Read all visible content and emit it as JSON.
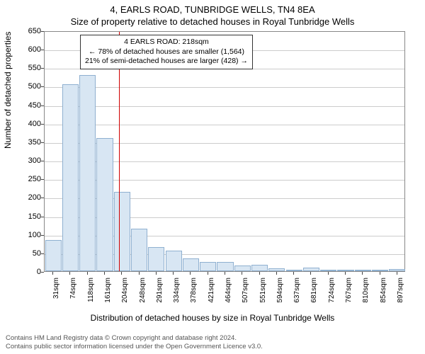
{
  "title": "4, EARLS ROAD, TUNBRIDGE WELLS, TN4 8EA",
  "subtitle": "Size of property relative to detached houses in Royal Tunbridge Wells",
  "ylabel": "Number of detached properties",
  "xlabel": "Distribution of detached houses by size in Royal Tunbridge Wells",
  "chart": {
    "type": "histogram",
    "ylim": [
      0,
      650
    ],
    "ytick_step": 50,
    "bar_fill": "#d8e6f3",
    "bar_border": "#8fb0d0",
    "grid_color": "#cccccc",
    "axis_color": "#888888",
    "marker_color": "#d00000",
    "marker_x_sqm": 218,
    "x_categories": [
      "31sqm",
      "74sqm",
      "118sqm",
      "161sqm",
      "204sqm",
      "248sqm",
      "291sqm",
      "334sqm",
      "378sqm",
      "421sqm",
      "464sqm",
      "507sqm",
      "551sqm",
      "594sqm",
      "637sqm",
      "681sqm",
      "724sqm",
      "767sqm",
      "810sqm",
      "854sqm",
      "897sqm"
    ],
    "values": [
      85,
      505,
      530,
      360,
      215,
      115,
      65,
      55,
      35,
      25,
      25,
      15,
      18,
      8,
      4,
      10,
      3,
      3,
      3,
      2,
      5
    ]
  },
  "annotation": {
    "line1": "4 EARLS ROAD: 218sqm",
    "line2": "← 78% of detached houses are smaller (1,564)",
    "line3": "21% of semi-detached houses are larger (428) →"
  },
  "footer1": "Contains HM Land Registry data © Crown copyright and database right 2024.",
  "footer2": "Contains public sector information licensed under the Open Government Licence v3.0."
}
